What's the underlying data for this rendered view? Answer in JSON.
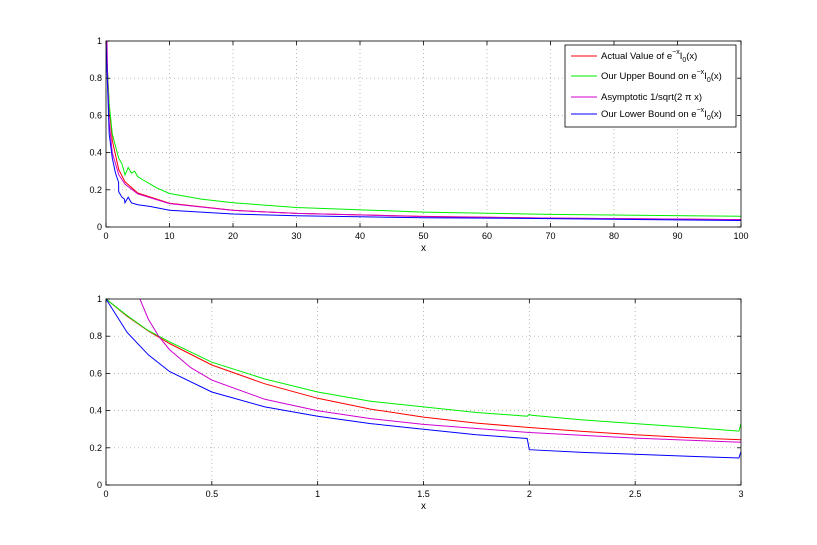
{
  "chart_data": [
    {
      "type": "line",
      "title": "",
      "xlabel": "x",
      "ylabel": "",
      "xlim": [
        0,
        100
      ],
      "ylim": [
        0,
        1
      ],
      "xticks": [
        0,
        10,
        20,
        30,
        40,
        50,
        60,
        70,
        80,
        90,
        100
      ],
      "yticks": [
        0,
        0.2,
        0.4,
        0.6,
        0.8,
        1
      ],
      "ytick_labels": [
        "0",
        "0.2",
        "0.4",
        "0.6",
        "0.8",
        "1"
      ],
      "grid": true,
      "legend_position": "top-right",
      "series": [
        {
          "name": "Actual Value of e^{-x}I_0(x)",
          "legend_main": "Actual Value of e",
          "legend_sup": "−x",
          "legend_after_sup": "I",
          "legend_sub": "0",
          "legend_tail": "(x)",
          "color": "#ff0000",
          "x": [
            0,
            0.5,
            1,
            2,
            3,
            5,
            10,
            20,
            30,
            50,
            70,
            100
          ],
          "y": [
            1.0,
            0.645,
            0.466,
            0.309,
            0.243,
            0.183,
            0.128,
            0.09,
            0.073,
            0.057,
            0.048,
            0.04
          ]
        },
        {
          "name": "Our Upper Bound on e^{-x}I_0(x)",
          "legend_main": "Our Upper Bound on e",
          "legend_sup": "−x",
          "legend_after_sup": "I",
          "legend_sub": "0",
          "legend_tail": "(x)",
          "color": "#00ee00",
          "x": [
            0,
            0.5,
            1,
            2,
            2.5,
            3,
            3.5,
            4,
            4.5,
            5,
            6,
            7,
            8,
            10,
            15,
            20,
            30,
            50,
            70,
            100
          ],
          "y": [
            1.0,
            0.66,
            0.5,
            0.37,
            0.34,
            0.28,
            0.32,
            0.29,
            0.3,
            0.27,
            0.25,
            0.23,
            0.21,
            0.18,
            0.15,
            0.13,
            0.105,
            0.08,
            0.068,
            0.058
          ]
        },
        {
          "name": "Asymptotic 1/sqrt(2 π x)",
          "legend_main": "Asymptotic 1/sqrt(2 π x)",
          "legend_sup": "",
          "legend_after_sup": "",
          "legend_sub": "",
          "legend_tail": "",
          "color": "#d000d0",
          "x": [
            0.16,
            0.25,
            0.5,
            1,
            2,
            3,
            5,
            10,
            20,
            30,
            50,
            70,
            100
          ],
          "y": [
            1.0,
            0.8,
            0.564,
            0.399,
            0.282,
            0.23,
            0.178,
            0.126,
            0.089,
            0.073,
            0.056,
            0.048,
            0.04
          ]
        },
        {
          "name": "Our Lower Bound on e^{-x}I_0(x)",
          "legend_main": "Our Lower Bound on e",
          "legend_sup": "−x",
          "legend_after_sup": "I",
          "legend_sub": "0",
          "legend_tail": "(x)",
          "color": "#0000ff",
          "x": [
            0,
            0.5,
            1,
            1.5,
            1.99,
            2.0,
            2.5,
            2.9,
            3,
            3.5,
            4,
            5,
            7,
            10,
            20,
            30,
            50,
            70,
            100
          ],
          "y": [
            1.0,
            0.5,
            0.37,
            0.29,
            0.24,
            0.19,
            0.16,
            0.15,
            0.13,
            0.16,
            0.13,
            0.12,
            0.11,
            0.09,
            0.07,
            0.06,
            0.05,
            0.045,
            0.035
          ]
        }
      ]
    },
    {
      "type": "line",
      "title": "",
      "xlabel": "x",
      "ylabel": "",
      "xlim": [
        0,
        3
      ],
      "ylim": [
        0,
        1
      ],
      "xticks": [
        0,
        0.5,
        1,
        1.5,
        2,
        2.5,
        3
      ],
      "xtick_labels": [
        "0",
        "0.5",
        "1",
        "1.5",
        "2",
        "2.5",
        "3"
      ],
      "yticks": [
        0,
        0.2,
        0.4,
        0.6,
        0.8,
        1
      ],
      "ytick_labels": [
        "0",
        "0.2",
        "0.4",
        "0.6",
        "0.8",
        "1"
      ],
      "grid": true,
      "series": [
        {
          "name": "Actual Value of e^{-x}I_0(x)",
          "color": "#ff0000",
          "x": [
            0,
            0.1,
            0.2,
            0.3,
            0.5,
            0.75,
            1,
            1.25,
            1.5,
            1.75,
            2,
            2.25,
            2.5,
            2.75,
            3
          ],
          "y": [
            1.0,
            0.907,
            0.828,
            0.761,
            0.645,
            0.544,
            0.466,
            0.408,
            0.365,
            0.333,
            0.309,
            0.288,
            0.27,
            0.255,
            0.243
          ]
        },
        {
          "name": "Our Upper Bound on e^{-x}I_0(x)",
          "color": "#00ee00",
          "x": [
            0,
            0.1,
            0.2,
            0.3,
            0.5,
            0.75,
            1,
            1.25,
            1.5,
            1.75,
            1.99,
            2.0,
            2.01,
            2.25,
            2.5,
            2.75,
            2.99,
            3
          ],
          "y": [
            1.0,
            0.91,
            0.83,
            0.77,
            0.66,
            0.57,
            0.5,
            0.45,
            0.42,
            0.39,
            0.37,
            0.38,
            0.375,
            0.35,
            0.33,
            0.31,
            0.29,
            0.33
          ]
        },
        {
          "name": "Asymptotic 1/sqrt(2 π x)",
          "color": "#d000d0",
          "x": [
            0.16,
            0.2,
            0.25,
            0.3,
            0.4,
            0.5,
            0.75,
            1,
            1.25,
            1.5,
            2,
            2.5,
            3
          ],
          "y": [
            1.0,
            0.892,
            0.798,
            0.728,
            0.631,
            0.564,
            0.461,
            0.399,
            0.357,
            0.326,
            0.282,
            0.252,
            0.23
          ]
        },
        {
          "name": "Our Lower Bound on e^{-x}I_0(x)",
          "color": "#0000ff",
          "x": [
            0,
            0.1,
            0.2,
            0.3,
            0.5,
            0.75,
            1,
            1.25,
            1.5,
            1.75,
            1.99,
            2.0,
            2.25,
            2.5,
            2.75,
            2.99,
            3
          ],
          "y": [
            1.0,
            0.82,
            0.7,
            0.61,
            0.5,
            0.42,
            0.37,
            0.33,
            0.3,
            0.27,
            0.25,
            0.19,
            0.175,
            0.165,
            0.155,
            0.145,
            0.18
          ]
        }
      ]
    }
  ]
}
